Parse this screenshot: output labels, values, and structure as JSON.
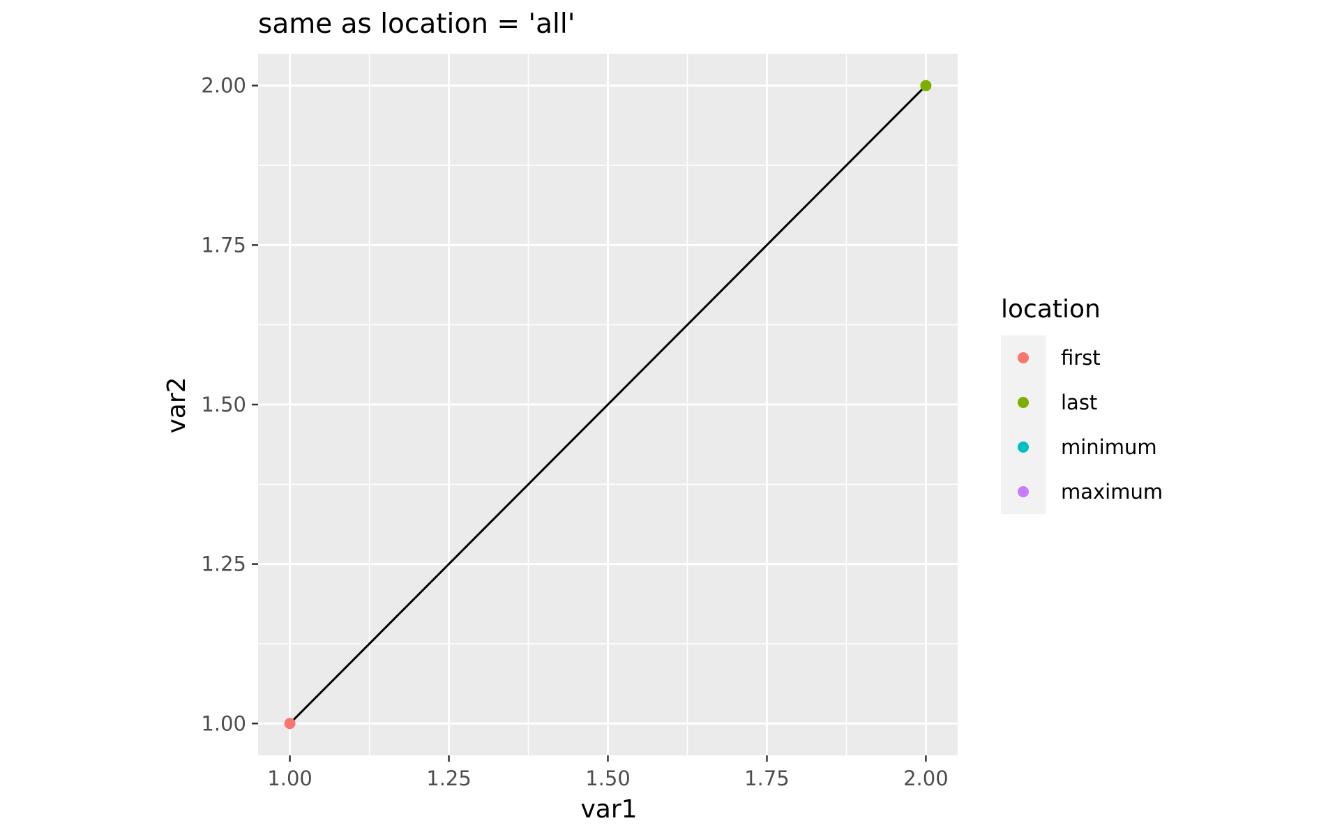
{
  "chart_data": {
    "type": "line",
    "title": "same as location = 'all'",
    "xlabel": "var1",
    "ylabel": "var2",
    "xlim": [
      0.95,
      2.05
    ],
    "ylim": [
      0.95,
      2.05
    ],
    "x_ticks": [
      "1.00",
      "1.25",
      "1.50",
      "1.75",
      "2.00"
    ],
    "y_ticks": [
      "1.00",
      "1.25",
      "1.50",
      "1.75",
      "2.00"
    ],
    "line": {
      "x": [
        1.0,
        2.0
      ],
      "y": [
        1.0,
        2.0
      ],
      "color": "#000000"
    },
    "points": [
      {
        "x": 1.0,
        "y": 1.0,
        "location": "first"
      },
      {
        "x": 2.0,
        "y": 2.0,
        "location": "last"
      }
    ],
    "legend": {
      "title": "location",
      "placement": "right",
      "entries": [
        {
          "label": "first",
          "color": "#F8766D"
        },
        {
          "label": "last",
          "color": "#7CAE00"
        },
        {
          "label": "minimum",
          "color": "#00BFC4"
        },
        {
          "label": "maximum",
          "color": "#C77CFF"
        }
      ]
    },
    "grid": true,
    "panel_background": "#EBEBEB",
    "grid_color": "#FFFFFF"
  }
}
